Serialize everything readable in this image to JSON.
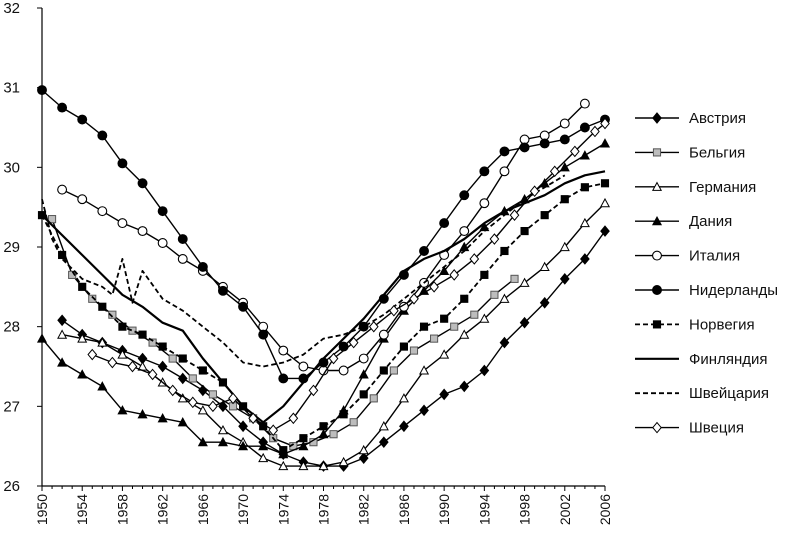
{
  "chart_data": {
    "type": "line",
    "title": "",
    "xlabel": "",
    "ylabel": "",
    "xlim": [
      1950,
      2006
    ],
    "ylim": [
      26,
      32
    ],
    "yticks": [
      26,
      27,
      28,
      29,
      30,
      31,
      32
    ],
    "xticks": [
      1950,
      1954,
      1958,
      1962,
      1966,
      1970,
      1974,
      1978,
      1982,
      1986,
      1990,
      1994,
      1998,
      2002,
      2006
    ],
    "grid": false,
    "legend_position": "right",
    "series": [
      {
        "name": "Австрия",
        "line": "solid",
        "marker": "diamond",
        "fill": "#000000",
        "x": [
          1952,
          1954,
          1956,
          1958,
          1960,
          1962,
          1964,
          1966,
          1968,
          1970,
          1972,
          1974,
          1976,
          1978,
          1980,
          1982,
          1984,
          1986,
          1988,
          1990,
          1992,
          1994,
          1996,
          1998,
          2000,
          2002,
          2004,
          2006
        ],
        "y": [
          28.08,
          27.9,
          27.8,
          27.7,
          27.6,
          27.5,
          27.35,
          27.2,
          27.0,
          26.75,
          26.55,
          26.4,
          26.3,
          26.25,
          26.25,
          26.35,
          26.55,
          26.75,
          26.95,
          27.15,
          27.25,
          27.45,
          27.8,
          28.05,
          28.3,
          28.6,
          28.85,
          29.2
        ]
      },
      {
        "name": "Бельгия",
        "line": "solid",
        "marker": "square",
        "fill": "#bdbdbd",
        "x": [
          1951,
          1953,
          1955,
          1957,
          1959,
          1961,
          1963,
          1965,
          1967,
          1969,
          1971,
          1973,
          1975,
          1977,
          1979,
          1981,
          1983,
          1985,
          1987,
          1989,
          1991,
          1993,
          1995,
          1997
        ],
        "y": [
          29.35,
          28.65,
          28.35,
          28.15,
          27.95,
          27.8,
          27.6,
          27.35,
          27.15,
          27.0,
          26.85,
          26.6,
          26.5,
          26.55,
          26.65,
          26.8,
          27.1,
          27.45,
          27.7,
          27.85,
          28.0,
          28.15,
          28.4,
          28.6
        ]
      },
      {
        "name": "Германия",
        "line": "solid",
        "marker": "triangle-open",
        "fill": "#ffffff",
        "x": [
          1952,
          1954,
          1956,
          1958,
          1960,
          1962,
          1964,
          1966,
          1968,
          1970,
          1972,
          1974,
          1976,
          1978,
          1980,
          1982,
          1984,
          1986,
          1988,
          1990,
          1992,
          1994,
          1996,
          1998,
          2000,
          2002,
          2004,
          2006
        ],
        "y": [
          27.9,
          27.85,
          27.8,
          27.65,
          27.5,
          27.3,
          27.1,
          26.95,
          26.7,
          26.55,
          26.35,
          26.25,
          26.25,
          26.25,
          26.3,
          26.45,
          26.75,
          27.1,
          27.45,
          27.65,
          27.9,
          28.1,
          28.35,
          28.55,
          28.75,
          29.0,
          29.3,
          29.55
        ]
      },
      {
        "name": "Дания",
        "line": "solid",
        "marker": "triangle",
        "fill": "#000000",
        "x": [
          1950,
          1952,
          1954,
          1956,
          1958,
          1960,
          1962,
          1964,
          1966,
          1968,
          1970,
          1972,
          1974,
          1976,
          1978,
          1980,
          1982,
          1984,
          1986,
          1988,
          1990,
          1992,
          1994,
          1996,
          1998,
          2000,
          2002,
          2004,
          2006
        ],
        "y": [
          27.85,
          27.55,
          27.4,
          27.25,
          26.95,
          26.9,
          26.85,
          26.8,
          26.55,
          26.55,
          26.5,
          26.5,
          26.4,
          26.5,
          26.65,
          26.95,
          27.4,
          27.85,
          28.2,
          28.45,
          28.7,
          29.0,
          29.25,
          29.45,
          29.6,
          29.8,
          30.0,
          30.15,
          30.3
        ]
      },
      {
        "name": "Италия",
        "line": "solid",
        "marker": "circle-open",
        "fill": "#ffffff",
        "x": [
          1952,
          1954,
          1956,
          1958,
          1960,
          1962,
          1964,
          1966,
          1968,
          1970,
          1972,
          1974,
          1976,
          1978,
          1980,
          1982,
          1984,
          1986,
          1988,
          1990,
          1992,
          1994,
          1996,
          1998,
          2000,
          2002,
          2004
        ],
        "y": [
          29.72,
          29.6,
          29.45,
          29.3,
          29.2,
          29.05,
          28.85,
          28.7,
          28.5,
          28.3,
          28.0,
          27.7,
          27.5,
          27.45,
          27.45,
          27.6,
          27.9,
          28.25,
          28.55,
          28.9,
          29.2,
          29.55,
          29.95,
          30.35,
          30.4,
          30.55,
          30.8
        ]
      },
      {
        "name": "Нидерланды",
        "line": "solid",
        "marker": "circle",
        "fill": "#000000",
        "x": [
          1950,
          1952,
          1954,
          1956,
          1958,
          1960,
          1962,
          1964,
          1966,
          1968,
          1970,
          1972,
          1974,
          1976,
          1978,
          1980,
          1982,
          1984,
          1986,
          1988,
          1990,
          1992,
          1994,
          1996,
          1998,
          2000,
          2002,
          2004,
          2006
        ],
        "y": [
          30.97,
          30.75,
          30.6,
          30.4,
          30.05,
          29.8,
          29.45,
          29.1,
          28.75,
          28.45,
          28.25,
          27.9,
          27.35,
          27.35,
          27.55,
          27.75,
          28.0,
          28.35,
          28.65,
          28.95,
          29.3,
          29.65,
          29.95,
          30.2,
          30.25,
          30.3,
          30.35,
          30.5,
          30.6
        ]
      },
      {
        "name": "Норвегия",
        "line": "dashed",
        "marker": "square",
        "fill": "#000000",
        "x": [
          1950,
          1952,
          1954,
          1956,
          1958,
          1960,
          1962,
          1964,
          1966,
          1968,
          1970,
          1972,
          1974,
          1976,
          1978,
          1980,
          1982,
          1984,
          1986,
          1988,
          1990,
          1992,
          1994,
          1996,
          1998,
          2000,
          2002,
          2004,
          2006
        ],
        "y": [
          29.4,
          28.9,
          28.5,
          28.25,
          28.0,
          27.9,
          27.75,
          27.6,
          27.45,
          27.3,
          27.0,
          26.75,
          26.45,
          26.6,
          26.75,
          26.9,
          27.15,
          27.45,
          27.75,
          28.0,
          28.1,
          28.35,
          28.65,
          28.95,
          29.2,
          29.4,
          29.6,
          29.75,
          29.8
        ]
      },
      {
        "name": "Финляндия",
        "line": "solid-thick",
        "marker": "none",
        "fill": "#000000",
        "x": [
          1950,
          1952,
          1954,
          1956,
          1958,
          1960,
          1962,
          1964,
          1966,
          1968,
          1970,
          1972,
          1974,
          1976,
          1978,
          1980,
          1982,
          1984,
          1986,
          1988,
          1990,
          1992,
          1994,
          1996,
          1998,
          2000,
          2002,
          2004,
          2006
        ],
        "y": [
          29.4,
          29.15,
          28.9,
          28.65,
          28.4,
          28.25,
          28.05,
          27.95,
          27.6,
          27.3,
          27.0,
          26.8,
          27.0,
          27.3,
          27.6,
          27.85,
          28.1,
          28.4,
          28.7,
          28.85,
          28.95,
          29.1,
          29.3,
          29.45,
          29.55,
          29.65,
          29.8,
          29.9,
          29.95
        ]
      },
      {
        "name": "Швейцария",
        "line": "dashed",
        "marker": "none",
        "fill": "#000000",
        "x": [
          1950,
          1951,
          1952,
          1954,
          1956,
          1957,
          1958,
          1959,
          1960,
          1962,
          1964,
          1966,
          1968,
          1970,
          1972,
          1974,
          1976,
          1978,
          1980,
          1982,
          1984,
          1986,
          1988,
          1990,
          1992,
          1994,
          1996,
          1998,
          2000,
          2002
        ],
        "y": [
          29.6,
          29.1,
          28.85,
          28.6,
          28.5,
          28.4,
          28.85,
          28.3,
          28.7,
          28.35,
          28.2,
          28.0,
          27.8,
          27.55,
          27.5,
          27.55,
          27.65,
          27.85,
          27.9,
          28.0,
          28.15,
          28.35,
          28.55,
          28.75,
          28.95,
          29.2,
          29.4,
          29.6,
          29.75,
          29.9
        ]
      },
      {
        "name": "Швеция",
        "line": "solid",
        "marker": "diamond-open",
        "fill": "#ffffff",
        "x": [
          1955,
          1957,
          1959,
          1961,
          1963,
          1965,
          1967,
          1969,
          1971,
          1973,
          1975,
          1977,
          1979,
          1981,
          1983,
          1985,
          1987,
          1989,
          1991,
          1993,
          1995,
          1997,
          1999,
          2001,
          2003,
          2005,
          2006
        ],
        "y": [
          27.65,
          27.55,
          27.5,
          27.4,
          27.2,
          27.05,
          27.0,
          27.1,
          26.85,
          26.7,
          26.85,
          27.2,
          27.6,
          27.8,
          28.0,
          28.2,
          28.35,
          28.5,
          28.65,
          28.85,
          29.1,
          29.4,
          29.7,
          29.95,
          30.2,
          30.45,
          30.55
        ]
      }
    ]
  }
}
